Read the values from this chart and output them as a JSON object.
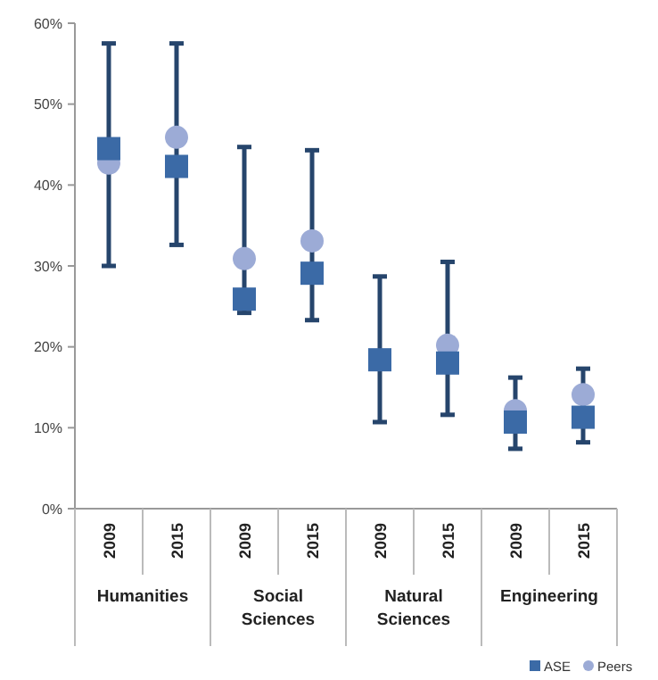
{
  "chart_data": {
    "type": "scatter",
    "categories": [
      "2009",
      "2015",
      "2009",
      "2015",
      "2009",
      "2015",
      "2009",
      "2015"
    ],
    "annotations": [
      "Humanities",
      "Social Sciences",
      "Natural Sciences",
      "Engineering"
    ],
    "series": [
      {
        "name": "ASE",
        "color": "#3b6aa6",
        "marker": "square",
        "values": [
          44.5,
          42.3,
          25.9,
          29.1,
          18.4,
          18.0,
          10.7,
          11.3
        ],
        "errors": [
          [
            30,
            57.5
          ],
          [
            32.6,
            57.5
          ],
          [
            24.2,
            44.7
          ],
          [
            23.3,
            44.3
          ],
          [
            10.7,
            28.7
          ],
          [
            11.6,
            30.5
          ],
          [
            7.4,
            16.2
          ],
          [
            8.2,
            17.3
          ]
        ]
      },
      {
        "name": "Peers",
        "color": "#9cabd6",
        "marker": "circle",
        "values": [
          42.7,
          45.9,
          30.9,
          33.1,
          null,
          20.2,
          12.1,
          14.1
        ]
      }
    ],
    "ylim": [
      0,
      60
    ],
    "yticks": [
      {
        "value": 0,
        "label": "0%"
      },
      {
        "value": 10,
        "label": "10%"
      },
      {
        "value": 20,
        "label": "20%"
      },
      {
        "value": 30,
        "label": "30%"
      },
      {
        "value": 40,
        "label": "40%"
      },
      {
        "value": 50,
        "label": "50%"
      },
      {
        "value": 60,
        "label": "60%"
      }
    ],
    "grid": false,
    "legend": "bottom right"
  }
}
